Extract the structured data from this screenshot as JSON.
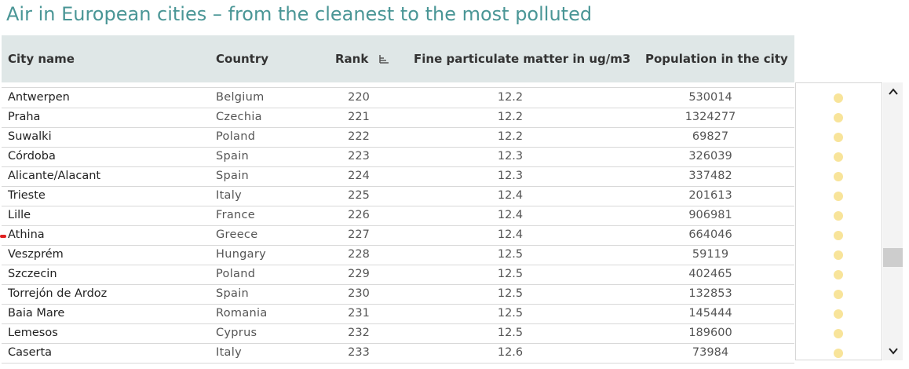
{
  "header": {
    "title": "Air in European cities – from the cleanest to the most polluted"
  },
  "table": {
    "columns": [
      "City name",
      "Country",
      "Rank",
      "Fine particulate matter in ug/m3",
      "Population in the city"
    ],
    "rows": [
      [
        "Antwerpen",
        "Belgium",
        220,
        12.2,
        530014
      ],
      [
        "Praha",
        "Czechia",
        221,
        12.2,
        1324277
      ],
      [
        "Suwalki",
        "Poland",
        222,
        12.2,
        69827
      ],
      [
        "Córdoba",
        "Spain",
        223,
        12.3,
        326039
      ],
      [
        "Alicante/Alacant",
        "Spain",
        224,
        12.3,
        337482
      ],
      [
        "Trieste",
        "Italy",
        225,
        12.4,
        201613
      ],
      [
        "Lille",
        "France",
        226,
        12.4,
        906981
      ],
      [
        "Athina",
        "Greece",
        227,
        12.4,
        664046
      ],
      [
        "Veszprém",
        "Hungary",
        228,
        12.5,
        59119
      ],
      [
        "Szczecin",
        "Poland",
        229,
        12.5,
        402465
      ],
      [
        "Torrejón de Ardoz",
        "Spain",
        230,
        12.5,
        132853
      ],
      [
        "Baia Mare",
        "Romania",
        231,
        12.5,
        145444
      ],
      [
        "Lemesos",
        "Cyprus",
        232,
        12.5,
        189600
      ],
      [
        "Caserta",
        "Italy",
        233,
        12.6,
        73984
      ]
    ]
  }
}
